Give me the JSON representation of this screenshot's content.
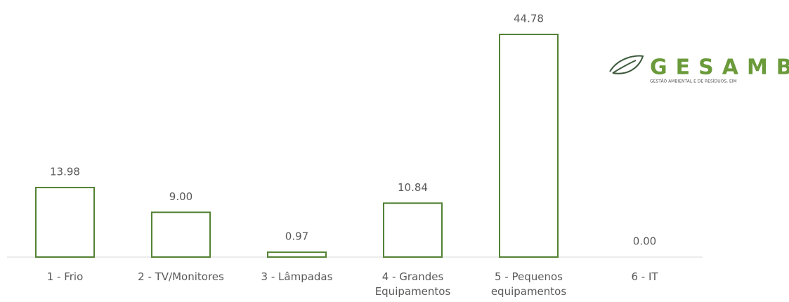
{
  "chart_data": {
    "type": "bar",
    "categories": [
      "1 - Frio",
      "2 - TV/Monitores",
      "3 - Lâmpadas",
      "4 - Grandes\nEquipamentos",
      "5 - Pequenos\nequipamentos",
      "6 - IT"
    ],
    "values": [
      13.98,
      9.0,
      0.97,
      10.84,
      44.78,
      0.0
    ],
    "value_labels": [
      "13.98",
      "9.00",
      "0.97",
      "10.84",
      "44.78",
      "0.00"
    ],
    "color": "#548235"
  },
  "logo": {
    "name": "GESAMB",
    "tagline": "GESTÃO AMBIENTAL E DE RESÍDUOS, EIM"
  }
}
